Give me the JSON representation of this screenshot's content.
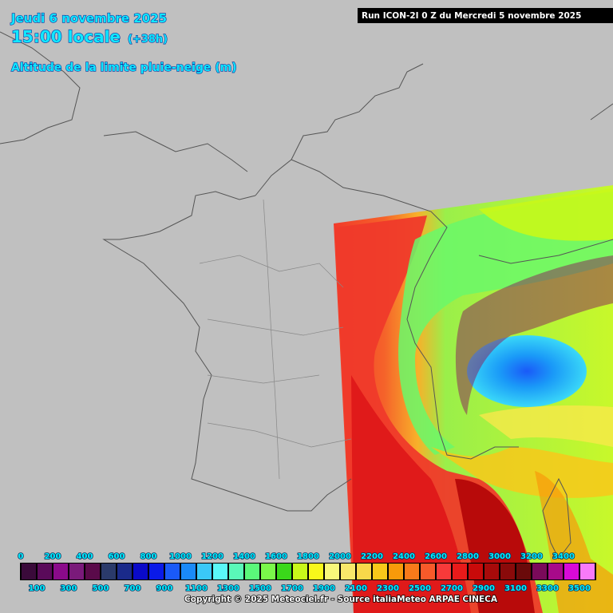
{
  "header": {
    "date": "Jeudi 6 novembre 2025",
    "time": "15:00 locale",
    "lead": "(+38h)",
    "field": "Altitude de la limite pluie-neige (m)",
    "run": "Run ICON-2I 0 Z du Mercredi 5 novembre 2025"
  },
  "legend": {
    "top_labels": [
      0,
      200,
      400,
      600,
      800,
      1000,
      1200,
      1400,
      1600,
      1800,
      2000,
      2200,
      2400,
      2600,
      2800,
      3000,
      3200,
      3400
    ],
    "bottom_labels": [
      100,
      300,
      500,
      700,
      900,
      1100,
      1300,
      1500,
      1700,
      1900,
      2100,
      2300,
      2500,
      2700,
      2900,
      3100,
      3300,
      3500
    ],
    "colors": [
      "#3a0a3a",
      "#5a0a5a",
      "#8a0a8a",
      "#7a1a7a",
      "#5a0a4a",
      "#2a3a6a",
      "#1a2a8a",
      "#0a0ac8",
      "#0a1ae8",
      "#1a5af8",
      "#1a8af8",
      "#3ac8f8",
      "#5af8f8",
      "#5af8b8",
      "#5af87a",
      "#7af84a",
      "#3ad81a",
      "#c8f81a",
      "#f8f81a",
      "#f8f87a",
      "#f8e86a",
      "#f8d84a",
      "#f8c81a",
      "#f89a0a",
      "#f87a1a",
      "#f85a2a",
      "#f83a3a",
      "#e81a1a",
      "#c80a0a",
      "#a80a0a",
      "#8a0a0a",
      "#6a0a0a",
      "#7a0a5a",
      "#a80a8a",
      "#d80ad8",
      "#f87af8"
    ]
  },
  "footer": {
    "copyright": "Copyright © 2025 Meteociel.fr - Source italiaMeteo ARPAE CINECA"
  }
}
